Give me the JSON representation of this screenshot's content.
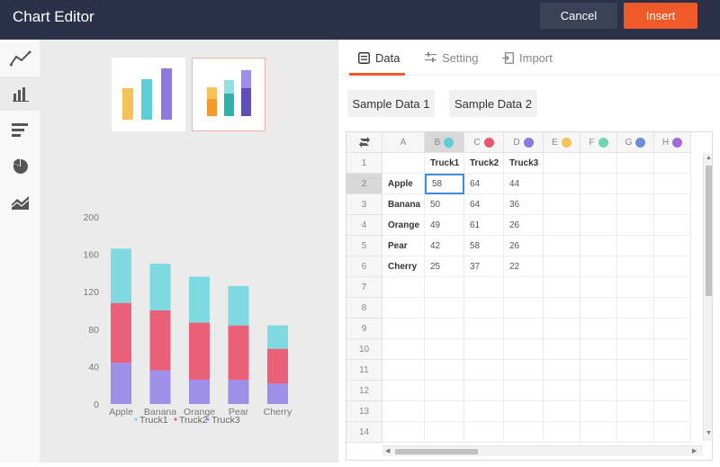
{
  "header": {
    "title": "Chart Editor",
    "cancel_label": "Cancel",
    "insert_label": "Insert",
    "bg": "#2b3148",
    "accent": "#f05a28"
  },
  "sidebar": {
    "items": [
      {
        "icon": "line-chart-icon",
        "active": false
      },
      {
        "icon": "column-chart-icon",
        "active": true
      },
      {
        "icon": "bar-chart-icon",
        "active": false
      },
      {
        "icon": "pie-chart-icon",
        "active": false
      },
      {
        "icon": "area-chart-icon",
        "active": false
      }
    ]
  },
  "thumbnails": [
    {
      "name": "clustered-column-thumbnail",
      "selected": false
    },
    {
      "name": "stacked-column-thumbnail",
      "selected": true
    }
  ],
  "tabs": [
    {
      "label": "Data",
      "icon": "data-sheet-icon",
      "active": true
    },
    {
      "label": "Setting",
      "icon": "sliders-icon",
      "active": false
    },
    {
      "label": "Import",
      "icon": "import-icon",
      "active": false
    }
  ],
  "samples": {
    "sample1": "Sample Data 1",
    "sample2": "Sample Data 2"
  },
  "grid": {
    "columns": [
      {
        "letter": "A",
        "dot": null
      },
      {
        "letter": "B",
        "dot": "#5ccfd6"
      },
      {
        "letter": "C",
        "dot": "#e8566e"
      },
      {
        "letter": "D",
        "dot": "#8a7be0"
      },
      {
        "letter": "E",
        "dot": "#f5c25a"
      },
      {
        "letter": "F",
        "dot": "#6ed6b0"
      },
      {
        "letter": "G",
        "dot": "#6b8ed6"
      },
      {
        "letter": "H",
        "dot": "#a66ad6"
      }
    ],
    "rows": [
      [
        "",
        "Truck1",
        "Truck2",
        "Truck3"
      ],
      [
        "Apple",
        "58",
        "64",
        "44"
      ],
      [
        "Banana",
        "50",
        "64",
        "36"
      ],
      [
        "Orange",
        "49",
        "61",
        "26"
      ],
      [
        "Pear",
        "42",
        "58",
        "26"
      ],
      [
        "Cherry",
        "25",
        "37",
        "22"
      ],
      [],
      [],
      [],
      [],
      [],
      [],
      [],
      []
    ],
    "row_numbers": [
      "1",
      "2",
      "3",
      "4",
      "5",
      "6",
      "7",
      "8",
      "9",
      "10",
      "11",
      "12",
      "13",
      "14"
    ],
    "selected_cell": "B2"
  },
  "chart_data": {
    "type": "bar",
    "stacked": true,
    "categories": [
      "Apple",
      "Banana",
      "Orange",
      "Pear",
      "Cherry"
    ],
    "series": [
      {
        "name": "Truck1",
        "color": "#7ed9e0",
        "values": [
          58,
          50,
          49,
          42,
          25
        ]
      },
      {
        "name": "Truck2",
        "color": "#eb6079",
        "values": [
          64,
          64,
          61,
          58,
          37
        ]
      },
      {
        "name": "Truck3",
        "color": "#9e8fe8",
        "values": [
          44,
          36,
          26,
          26,
          22
        ]
      }
    ],
    "ylim": [
      0,
      200
    ],
    "yticks": [
      "0",
      "40",
      "80",
      "120",
      "160",
      "200"
    ],
    "legend": "bottom",
    "grid": false
  }
}
